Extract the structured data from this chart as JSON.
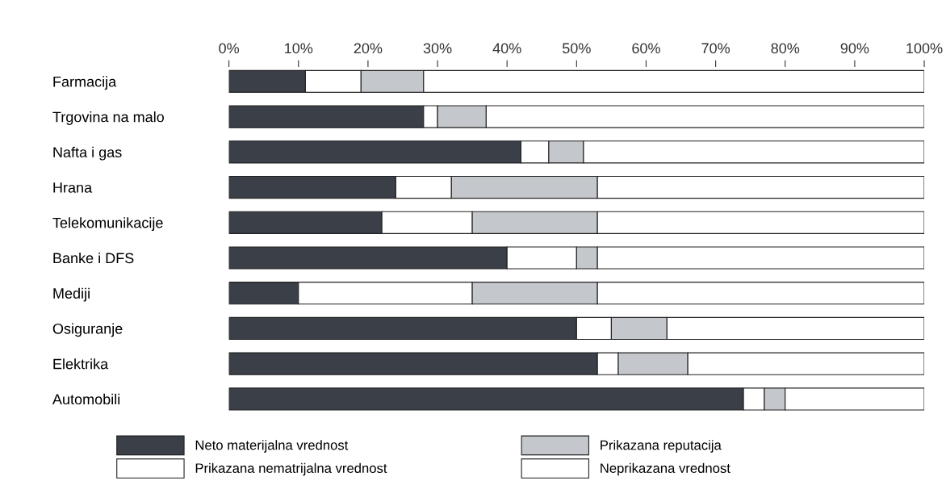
{
  "chart_data": {
    "type": "bar",
    "orientation": "horizontal",
    "stacked": true,
    "categories": [
      "Farmacija",
      "Trgovina na malo",
      "Nafta i gas",
      "Hrana",
      "Telekomunikacije",
      "Banke i DFS",
      "Mediji",
      "Osiguranje",
      "Elektrika",
      "Automobili"
    ],
    "series": [
      {
        "name": "Neto materijalna vrednost",
        "color": "#3a3f48",
        "values": [
          11,
          28,
          42,
          24,
          22,
          40,
          10,
          50,
          53,
          74
        ]
      },
      {
        "name": "Prikazana nematrijalna vrednost",
        "color": "#ffffff",
        "values": [
          8,
          2,
          4,
          8,
          13,
          10,
          25,
          5,
          3,
          3
        ]
      },
      {
        "name": "Prikazana reputacija",
        "color": "#c4c7cb",
        "values": [
          9,
          7,
          5,
          21,
          18,
          3,
          18,
          8,
          10,
          3
        ]
      },
      {
        "name": "Neprikazana vrednost",
        "color": "#ffffff",
        "values": [
          72,
          63,
          49,
          47,
          47,
          47,
          47,
          37,
          34,
          20
        ]
      }
    ],
    "xlim": [
      0,
      100
    ],
    "xticks": [
      {
        "value": 0,
        "label": "0%"
      },
      {
        "value": 10,
        "label": "10%"
      },
      {
        "value": 20,
        "label": "20%"
      },
      {
        "value": 30,
        "label": "30%"
      },
      {
        "value": 40,
        "label": "40%"
      },
      {
        "value": 50,
        "label": "50%"
      },
      {
        "value": 60,
        "label": "60%"
      },
      {
        "value": 70,
        "label": "70%"
      },
      {
        "value": 80,
        "label": "80%"
      },
      {
        "value": 90,
        "label": "90%"
      },
      {
        "value": 100,
        "label": "100%"
      }
    ],
    "grid": false,
    "legend": "bottom"
  }
}
